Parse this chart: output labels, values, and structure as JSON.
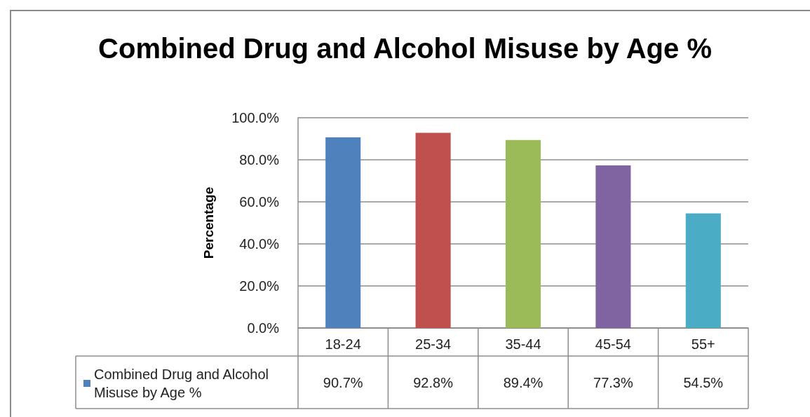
{
  "chart_data": {
    "type": "bar",
    "title": "Combined Drug and Alcohol Misuse by Age %",
    "ylabel": "Percentage",
    "categories": [
      "18-24",
      "25-34",
      "35-44",
      "45-54",
      "55+"
    ],
    "series": [
      {
        "name": "Combined Drug and Alcohol Misuse by Age %",
        "color": "#4f81bd",
        "colors": [
          "#4f81bd",
          "#c0504d",
          "#9bbb59",
          "#8064a2",
          "#4bacc6"
        ],
        "values": [
          90.7,
          92.8,
          89.4,
          77.3,
          54.5
        ],
        "value_labels": [
          "90.7%",
          "92.8%",
          "89.4%",
          "77.3%",
          "54.5%"
        ]
      }
    ],
    "ylim": [
      0,
      100
    ],
    "yticks": [
      {
        "value": 0,
        "label": "0.0%"
      },
      {
        "value": 20,
        "label": "20.0%"
      },
      {
        "value": 40,
        "label": "40.0%"
      },
      {
        "value": 60,
        "label": "60.0%"
      },
      {
        "value": 80,
        "label": "80.0%"
      },
      {
        "value": 100,
        "label": "100.0%"
      }
    ],
    "grid": "y",
    "legend": "bottom left"
  }
}
